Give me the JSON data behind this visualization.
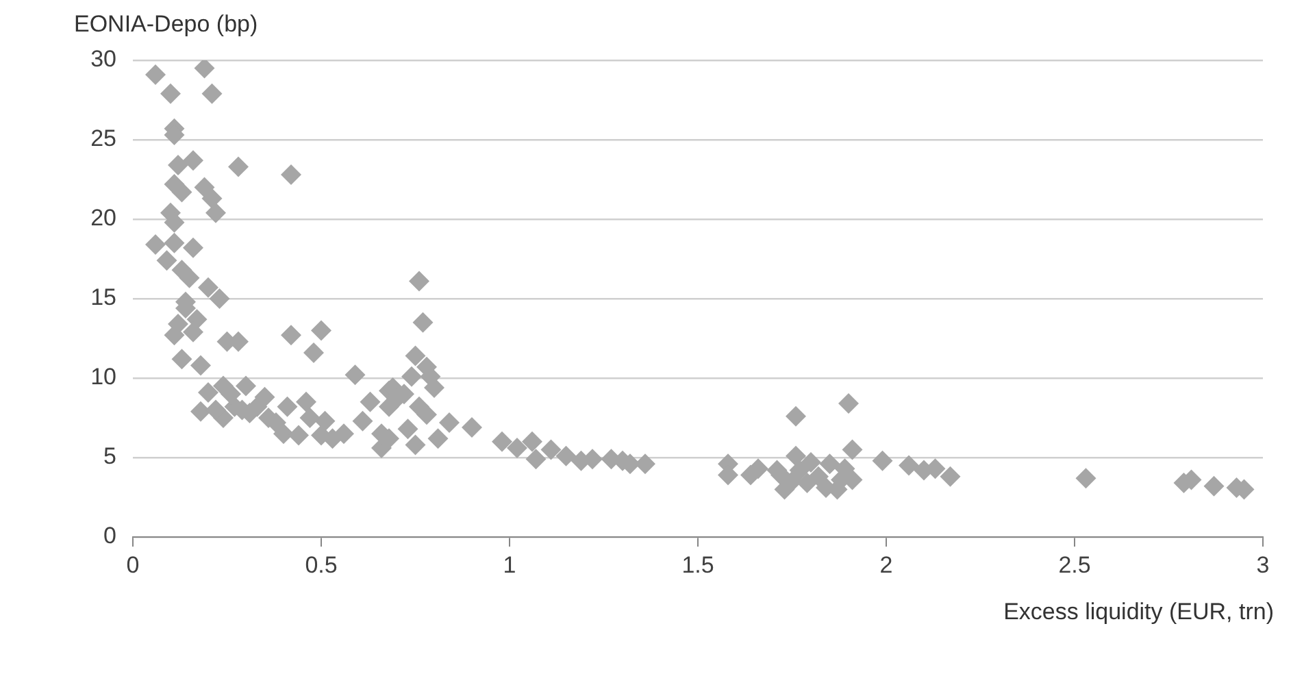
{
  "chart_data": {
    "type": "scatter",
    "xlabel": "Excess liquidity (EUR, trn)",
    "ylabel": "EONIA-Depo (bp)",
    "x": [
      0.06,
      0.19,
      0.1,
      0.21,
      0.11,
      0.11,
      0.12,
      0.16,
      0.28,
      0.42,
      0.11,
      0.13,
      0.19,
      0.21,
      0.22,
      0.1,
      0.11,
      0.06,
      0.11,
      0.16,
      0.09,
      0.13,
      0.15,
      0.2,
      0.23,
      0.14,
      0.14,
      0.17,
      0.12,
      0.11,
      0.16,
      0.25,
      0.28,
      0.42,
      0.5,
      0.48,
      0.13,
      0.18,
      0.59,
      0.2,
      0.24,
      0.3,
      0.35,
      0.41,
      0.46,
      0.18,
      0.24,
      0.27,
      0.31,
      0.38,
      0.4,
      0.44,
      0.5,
      0.51,
      0.56,
      0.61,
      0.63,
      0.66,
      0.68,
      0.66,
      0.76,
      0.77,
      0.75,
      0.78,
      0.79,
      0.8,
      0.74,
      0.69,
      0.68,
      0.76,
      0.78,
      0.84,
      0.9,
      0.73,
      0.75,
      0.81,
      0.68,
      0.98,
      1.02,
      1.06,
      1.07,
      1.11,
      1.15,
      1.19,
      1.22,
      1.27,
      1.32,
      1.36,
      1.3,
      1.76,
      1.9,
      1.91,
      1.99,
      2.06,
      2.1,
      2.13,
      2.17,
      1.58,
      1.58,
      1.64,
      1.66,
      1.72,
      1.73,
      1.76,
      1.77,
      1.79,
      1.8,
      1.84,
      1.85,
      1.88,
      1.89,
      1.91,
      1.71,
      1.75,
      1.82,
      1.87,
      2.53,
      2.79,
      2.81,
      2.87,
      2.93,
      2.95,
      0.22,
      0.29,
      0.33,
      0.26,
      0.36,
      0.47,
      0.53,
      0.7,
      0.72
    ],
    "values": [
      29.1,
      29.5,
      27.9,
      27.9,
      25.7,
      25.3,
      23.4,
      23.7,
      23.3,
      22.8,
      22.2,
      21.7,
      22.0,
      21.3,
      20.4,
      20.4,
      19.8,
      18.4,
      18.5,
      18.2,
      17.4,
      16.8,
      16.3,
      15.7,
      15.0,
      14.8,
      14.4,
      13.7,
      13.4,
      12.7,
      12.9,
      12.3,
      12.3,
      12.7,
      13.0,
      11.6,
      11.2,
      10.8,
      10.2,
      9.1,
      9.5,
      9.5,
      8.8,
      8.2,
      8.5,
      7.9,
      7.5,
      8.2,
      7.8,
      7.2,
      6.5,
      6.4,
      6.4,
      7.3,
      6.5,
      7.3,
      8.5,
      5.6,
      9.2,
      6.5,
      16.1,
      13.5,
      11.4,
      10.7,
      10.1,
      9.4,
      10.1,
      9.4,
      8.2,
      8.2,
      7.7,
      7.2,
      6.9,
      6.8,
      5.8,
      6.2,
      6.2,
      6.0,
      5.6,
      6.0,
      4.9,
      5.5,
      5.1,
      4.8,
      4.9,
      4.9,
      4.6,
      4.6,
      4.8,
      7.6,
      8.4,
      5.5,
      4.8,
      4.5,
      4.2,
      4.3,
      3.8,
      4.6,
      3.9,
      3.9,
      4.3,
      3.9,
      3.0,
      5.1,
      4.2,
      3.4,
      4.7,
      3.1,
      4.6,
      3.6,
      4.3,
      3.6,
      4.2,
      3.5,
      3.8,
      3.0,
      3.7,
      3.4,
      3.6,
      3.2,
      3.1,
      3.0,
      8.0,
      8.0,
      8.2,
      9.0,
      7.5,
      7.5,
      6.2,
      8.7,
      9.0
    ],
    "color": "#a6a6a6",
    "marker": "diamond",
    "xlim": [
      0,
      3
    ],
    "xticks": [
      0,
      0.5,
      1,
      1.5,
      2,
      2.5,
      3
    ],
    "ylim": [
      0,
      30
    ],
    "yticks": [
      0,
      5,
      10,
      15,
      20,
      25,
      30
    ],
    "grid": "y"
  }
}
